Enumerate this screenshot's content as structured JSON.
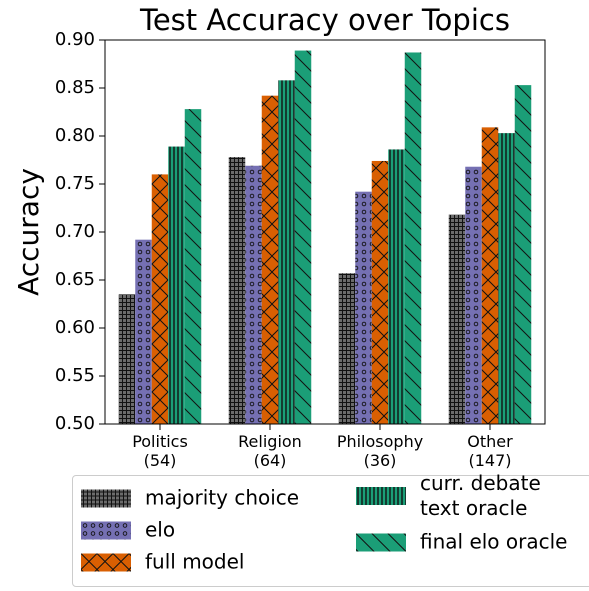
{
  "chart_data": {
    "type": "bar",
    "title": "Test Accuracy over Topics",
    "y_label": "Accuracy",
    "categories": [
      "Politics\n(54)",
      "Religion\n(64)",
      "Philosophy\n(36)",
      "Other\n(147)"
    ],
    "series": [
      {
        "name": "majority choice",
        "color": "#6b6b6b",
        "hatch": "grid",
        "values": [
          0.635,
          0.778,
          0.657,
          0.718
        ]
      },
      {
        "name": "elo",
        "color": "#7570b3",
        "hatch": "circles",
        "values": [
          0.692,
          0.769,
          0.742,
          0.768
        ]
      },
      {
        "name": "full model",
        "color": "#d95f02",
        "hatch": "cross",
        "values": [
          0.76,
          0.842,
          0.774,
          0.809
        ]
      },
      {
        "name": "curr. debate\ntext oracle",
        "color": "#1b9e77",
        "hatch": "vertical",
        "values": [
          0.789,
          0.858,
          0.786,
          0.803
        ]
      },
      {
        "name": "final elo oracle",
        "color": "#1b9e77",
        "hatch": "backslash",
        "values": [
          0.828,
          0.889,
          0.887,
          0.853
        ]
      }
    ],
    "ylim": [
      0.5,
      0.9
    ],
    "yticks": [
      {
        "value": 0.5,
        "label": "0.50"
      },
      0.55,
      {
        "value": 0.6,
        "label": "0.60"
      },
      0.65,
      {
        "value": 0.7,
        "label": "0.70"
      },
      0.75,
      {
        "value": 0.8,
        "label": "0.80"
      },
      0.85,
      {
        "value": 0.9,
        "label": "0.90"
      }
    ],
    "grid": false
  }
}
